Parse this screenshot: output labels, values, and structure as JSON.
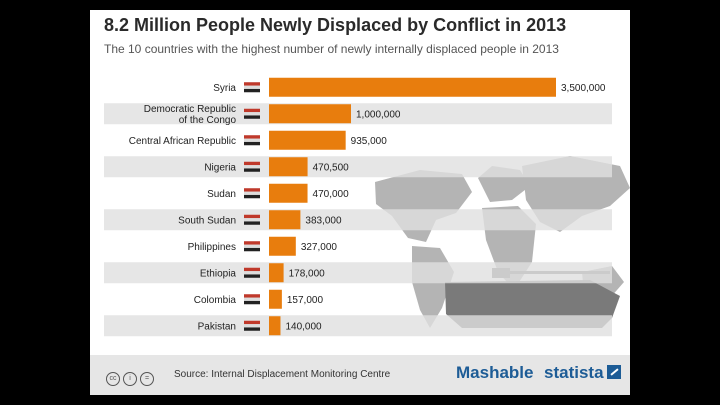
{
  "header": {
    "title": "8.2 Million People Newly Displaced by Conflict in 2013",
    "subtitle": "The 10 countries with the highest number of newly internally displaced people in 2013"
  },
  "chart_data": {
    "type": "bar",
    "orientation": "horizontal",
    "title": "8.2 Million People Newly Displaced by Conflict in 2013",
    "xlabel": "",
    "ylabel": "",
    "xlim": [
      0,
      3500000
    ],
    "grid": false,
    "legend": "none",
    "bar_color": "#e87d0d",
    "categories": [
      [
        "Syria"
      ],
      [
        "Democratic Republic",
        "of the Congo"
      ],
      [
        "Central African Republic"
      ],
      [
        "Nigeria"
      ],
      [
        "Sudan"
      ],
      [
        "South Sudan"
      ],
      [
        "Philippines"
      ],
      [
        "Ethiopia"
      ],
      [
        "Colombia"
      ],
      [
        "Pakistan"
      ]
    ],
    "values": [
      3500000,
      1000000,
      935000,
      470500,
      470000,
      383000,
      327000,
      178000,
      157000,
      140000
    ],
    "value_labels": [
      "3,500,000",
      "1,000,000",
      "935,000",
      "470,500",
      "470,000",
      "383,000",
      "327,000",
      "178,000",
      "157,000",
      "140,000"
    ],
    "flags": [
      "syria-flag",
      "drc-flag",
      "car-flag",
      "nigeria-flag",
      "sudan-flag",
      "south-sudan-flag",
      "philippines-flag",
      "ethiopia-flag",
      "colombia-flag",
      "pakistan-flag"
    ]
  },
  "footer": {
    "license_icons": [
      "cc",
      "i",
      "="
    ],
    "source": "Source: Internal Displacement Monitoring Centre",
    "brand_left": "Mashable",
    "brand_right": "statista"
  },
  "colors": {
    "bar": "#e87d0d",
    "stripe": "#e0e0e0",
    "brand": "#1d5c96"
  }
}
